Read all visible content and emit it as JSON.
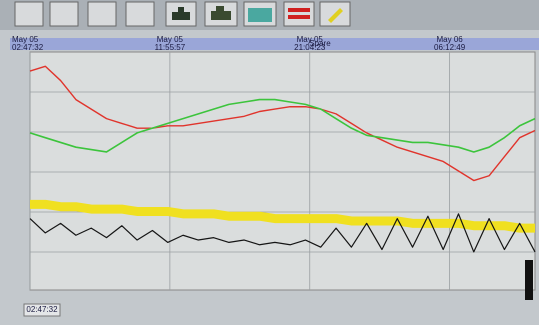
{
  "header": {
    "title": "Spare"
  },
  "chart_data": {
    "type": "line",
    "x": [
      0,
      1,
      2,
      3,
      4,
      5,
      6,
      7,
      8,
      9,
      10,
      11,
      12,
      13,
      14,
      15,
      16,
      17,
      18,
      19,
      20,
      21,
      22,
      23,
      24,
      25,
      26,
      27,
      28,
      29,
      30,
      31,
      32,
      33
    ],
    "xlim": [
      0,
      33
    ],
    "xticks": [
      {
        "value": 0,
        "label": [
          "May 05",
          "02:47:32"
        ]
      },
      {
        "value": 9.14,
        "label": [
          "May 05",
          "11:55:57"
        ]
      },
      {
        "value": 18.28,
        "label": [
          "May 05",
          "21:04:23"
        ]
      },
      {
        "value": 27.42,
        "label": [
          "May 06",
          "06:12:49"
        ]
      }
    ],
    "ylim": [
      0,
      100
    ],
    "series": [
      {
        "color": "#e0342c",
        "values": [
          92,
          94,
          88,
          80,
          76,
          72,
          70,
          68,
          68,
          69,
          69,
          70,
          71,
          72,
          73,
          75,
          76,
          77,
          77,
          76,
          74,
          70,
          66,
          63,
          60,
          58,
          56,
          54,
          50,
          46,
          48,
          56,
          64,
          67
        ]
      },
      {
        "color": "#3cc43c",
        "values": [
          66,
          64,
          62,
          60,
          59,
          58,
          62,
          66,
          68,
          70,
          72,
          74,
          76,
          78,
          79,
          80,
          80,
          79,
          78,
          76,
          72,
          68,
          65,
          64,
          63,
          62,
          62,
          61,
          60,
          58,
          60,
          64,
          69,
          72
        ]
      },
      {
        "color": "#f0e020",
        "values": [
          36,
          36,
          35,
          35,
          34,
          34,
          34,
          33,
          33,
          33,
          32,
          32,
          32,
          31,
          31,
          31,
          30,
          30,
          30,
          30,
          30,
          29,
          29,
          29,
          29,
          28,
          28,
          28,
          28,
          27,
          27,
          27,
          26,
          26
        ]
      },
      {
        "color": "#151515",
        "values": [
          30,
          24,
          28,
          23,
          26,
          22,
          27,
          21,
          25,
          20,
          23,
          21,
          22,
          20,
          21,
          19,
          20,
          19,
          21,
          18,
          26,
          18,
          28,
          17,
          30,
          18,
          31,
          17,
          32,
          16,
          30,
          17,
          28,
          16
        ]
      }
    ]
  },
  "footer": {
    "cursor_time": "02:47:32"
  }
}
